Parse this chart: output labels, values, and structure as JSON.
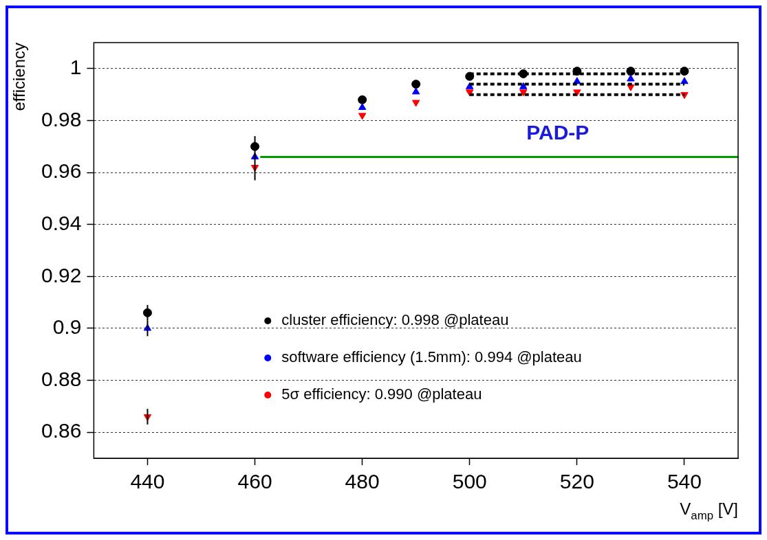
{
  "chart_data": {
    "type": "scatter",
    "xlabel": "V$_{amp}$ [V]",
    "ylabel": "efficiency",
    "legend": "bottom right",
    "grid": "y",
    "xlim": [
      430,
      550
    ],
    "xticks": [
      440,
      460,
      480,
      500,
      520,
      540
    ],
    "ylim": [
      0.85,
      1.01
    ],
    "yticks": [
      0.86,
      0.88,
      0.9,
      0.92,
      0.94,
      0.96,
      0.98,
      1
    ],
    "x": [
      440,
      460,
      480,
      490,
      500,
      510,
      520,
      530,
      540
    ],
    "series": [
      {
        "name": "cluster efficiency: 0.998 @plateau",
        "color": "#000000",
        "marker": "circle",
        "values": [
          0.906,
          0.97,
          0.988,
          0.994,
          0.997,
          0.998,
          0.999,
          0.999,
          0.999
        ],
        "errors": [
          0.003,
          0.004,
          null,
          null,
          null,
          null,
          null,
          null,
          null
        ]
      },
      {
        "name": "software efficiency (1.5mm): 0.994 @plateau",
        "color": "#0000ff",
        "marker": "triangle",
        "values": [
          0.9,
          0.966,
          0.985,
          0.991,
          0.993,
          0.993,
          0.995,
          0.996,
          0.995
        ],
        "errors": [
          0.003,
          null,
          null,
          null,
          null,
          null,
          null,
          null,
          null
        ]
      },
      {
        "name": "5σ efficiency: 0.990 @plateau",
        "color": "#ff0000",
        "marker": "triangle-down",
        "values": [
          0.866,
          0.962,
          0.982,
          0.987,
          0.991,
          0.991,
          0.991,
          0.993,
          0.99
        ],
        "errors": [
          0.003,
          0.005,
          null,
          null,
          null,
          null,
          null,
          null,
          null
        ]
      },
      {
        "type": "line",
        "color": "#000000",
        "line_style": "dashed",
        "marker": "none",
        "x": [
          500,
          540
        ],
        "values": [
          0.998,
          0.998
        ]
      },
      {
        "type": "line",
        "color": "#000000",
        "line_style": "dashed",
        "marker": "none",
        "x": [
          500,
          540
        ],
        "values": [
          0.994,
          0.994
        ]
      },
      {
        "type": "line",
        "color": "#000000",
        "line_style": "dashed",
        "marker": "none",
        "x": [
          500,
          540
        ],
        "values": [
          0.99,
          0.99
        ]
      },
      {
        "type": "line",
        "color": "#009900",
        "line_style": "solid",
        "marker": "none",
        "x": [
          461,
          550
        ],
        "values": [
          0.966,
          0.966
        ]
      }
    ],
    "annotations": [
      "PAD-P"
    ]
  }
}
